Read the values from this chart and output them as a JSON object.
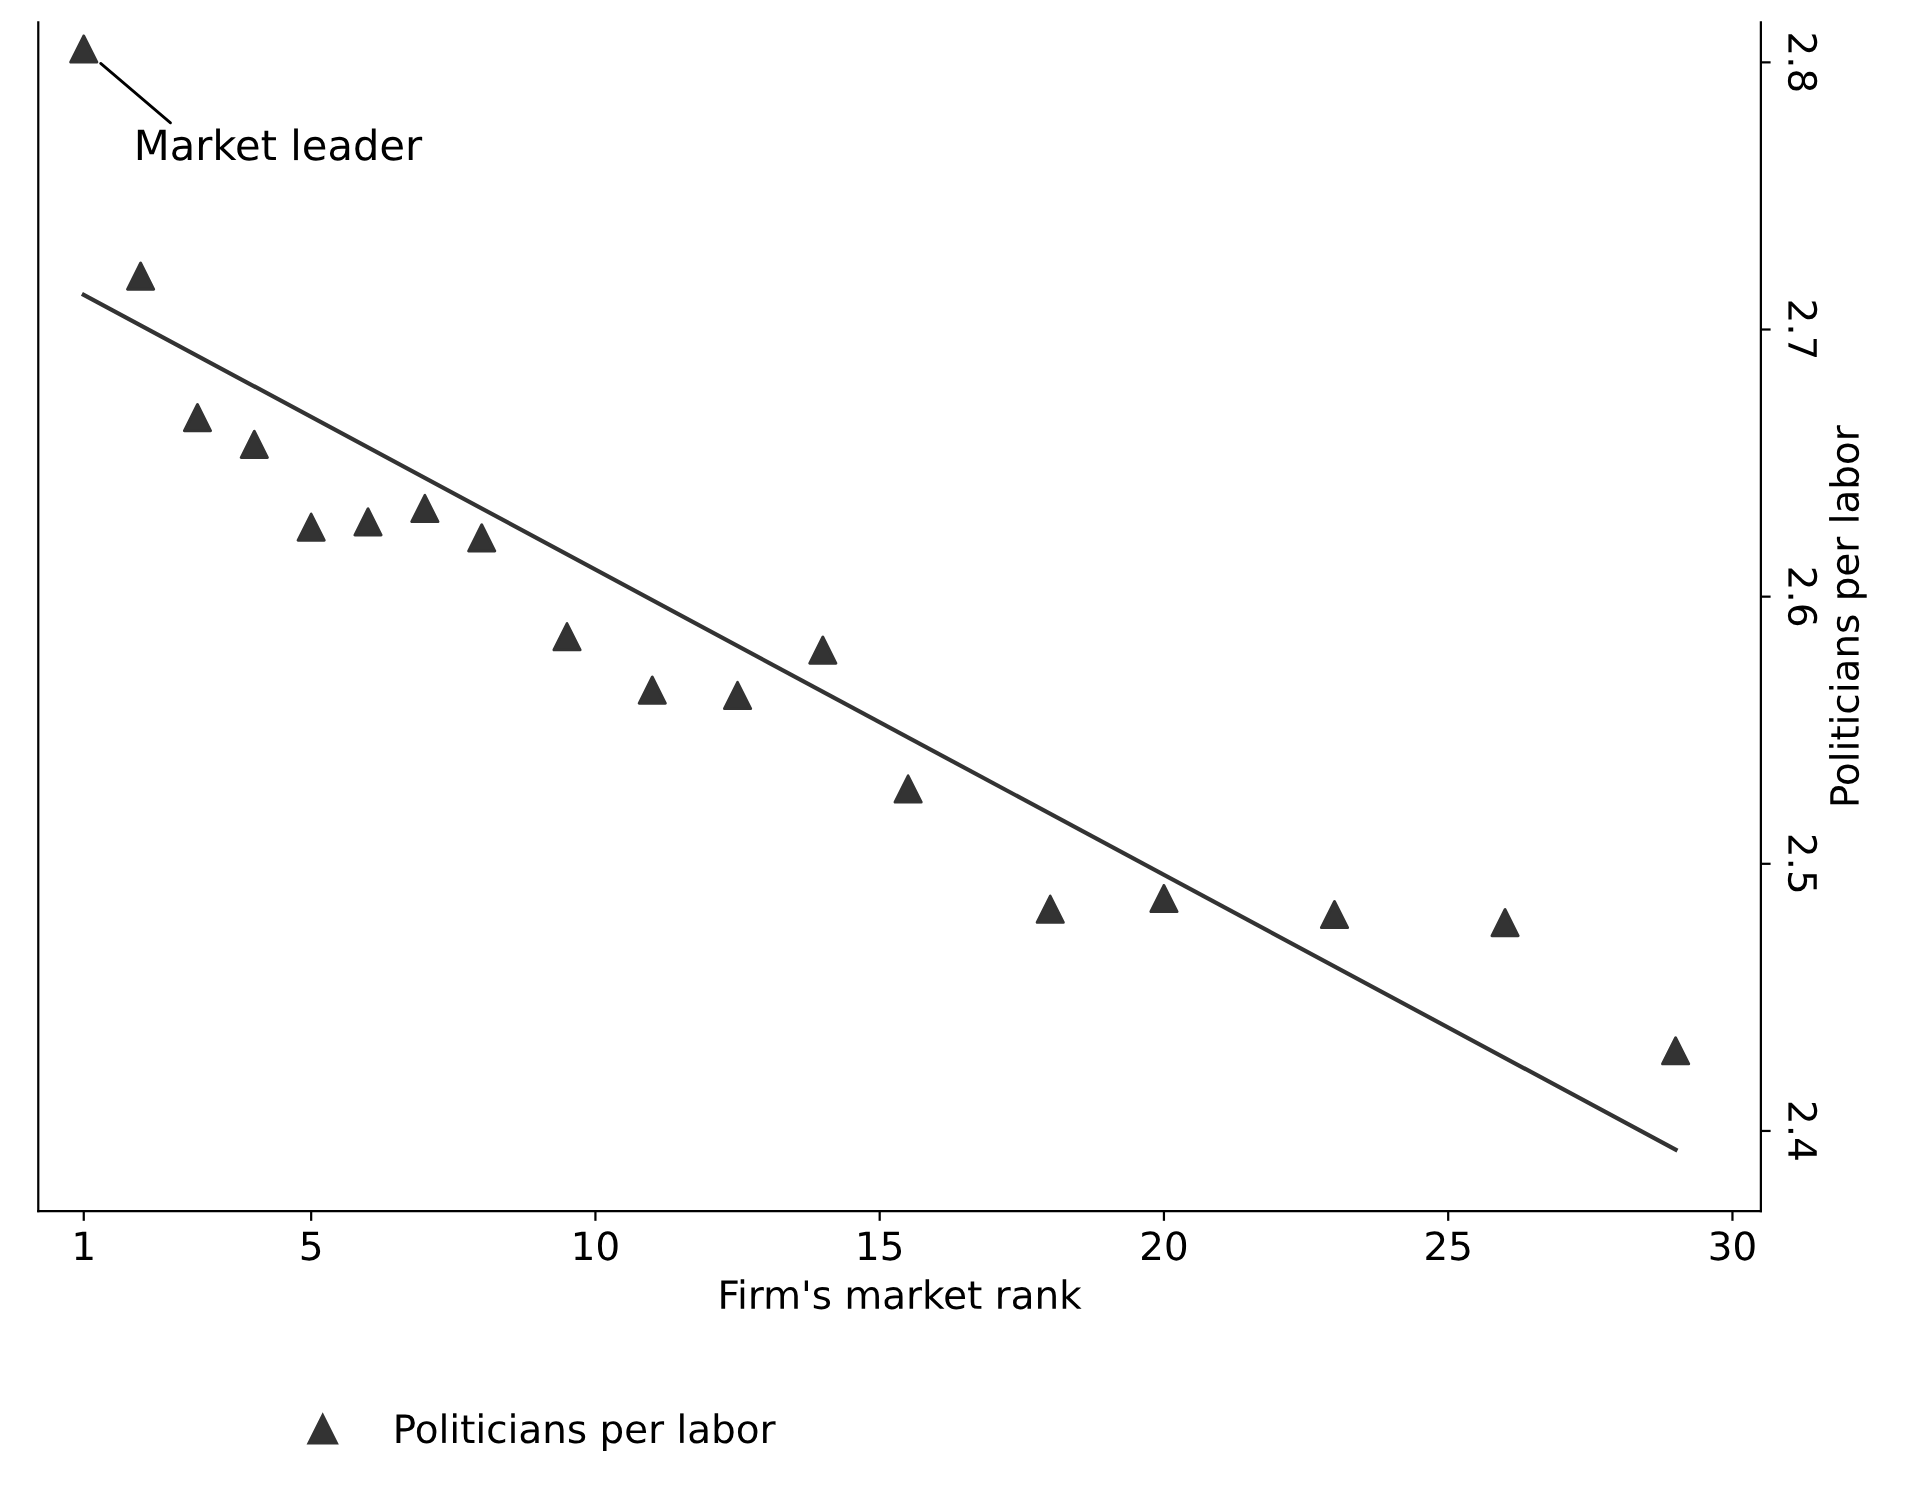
{
  "chart_data": {
    "type": "scatter",
    "xlabel": "Firm's market rank",
    "ylabel": "Politicians per labor",
    "xlim": [
      0.2,
      30.5
    ],
    "xticks": [
      1,
      5,
      10,
      15,
      20,
      25,
      30
    ],
    "ylim": [
      2.37,
      2.815
    ],
    "yticks": [
      2.4,
      2.5,
      2.6,
      2.7,
      2.8
    ],
    "series": [
      {
        "name": "Politicians per labor",
        "color": "#333333",
        "marker": "triangle",
        "x": [
          1,
          2,
          3,
          4,
          5,
          6,
          7,
          8,
          9.5,
          11,
          12.5,
          14,
          15.5,
          18,
          20,
          23,
          26,
          29
        ],
        "values": [
          2.805,
          2.72,
          2.667,
          2.657,
          2.626,
          2.628,
          2.633,
          2.622,
          2.585,
          2.565,
          2.563,
          2.58,
          2.528,
          2.483,
          2.487,
          2.481,
          2.478,
          2.43
        ]
      },
      {
        "type": "line",
        "color": "#333333",
        "line_style": "solid",
        "x": [
          1,
          29
        ],
        "values": [
          2.713,
          2.393
        ]
      }
    ],
    "annotations": [
      {
        "text": "Market leader",
        "x": 1,
        "y": 2.805
      }
    ],
    "legend": "bottom",
    "grid": false
  }
}
